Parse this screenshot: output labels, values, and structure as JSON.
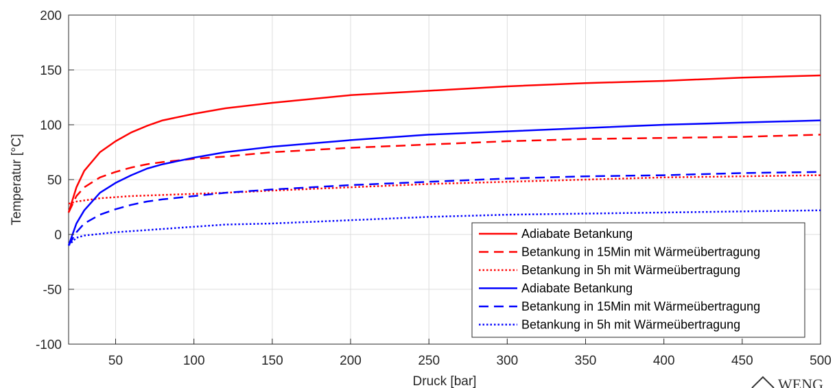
{
  "chart_data": {
    "type": "line",
    "xlabel": "Druck [bar]",
    "ylabel": "Temperatur [°C]",
    "xlim": [
      20,
      500
    ],
    "ylim": [
      -100,
      200
    ],
    "xticks": [
      50,
      100,
      150,
      200,
      250,
      300,
      350,
      400,
      450,
      500
    ],
    "yticks": [
      -100,
      -50,
      0,
      50,
      100,
      150,
      200
    ],
    "grid": true,
    "legend_position": "lower-right",
    "x": [
      20,
      25,
      30,
      40,
      50,
      60,
      70,
      80,
      100,
      120,
      150,
      200,
      250,
      300,
      350,
      400,
      450,
      500
    ],
    "series": [
      {
        "name": "Adiabate Betankung",
        "color": "#ff0000",
        "style": "solid",
        "values": [
          20,
          43,
          58,
          75,
          85,
          93,
          99,
          104,
          110,
          115,
          120,
          127,
          131,
          135,
          138,
          140,
          143,
          145
        ]
      },
      {
        "name": "Betankung in 15Min mit Wärmeübertragung",
        "color": "#ff0000",
        "style": "dashed",
        "values": [
          20,
          35,
          43,
          52,
          57,
          61,
          64,
          66,
          69,
          71,
          75,
          79,
          82,
          85,
          87,
          88,
          89,
          91
        ]
      },
      {
        "name": "Betankung in 5h mit Wärmeübertragung",
        "color": "#ff0000",
        "style": "dotted",
        "values": [
          28,
          30,
          31,
          33,
          34,
          35,
          35.5,
          36,
          37,
          38,
          40,
          43,
          46,
          48,
          50,
          52,
          53,
          54
        ]
      },
      {
        "name": "Adiabate Betankung",
        "color": "#0000ff",
        "style": "solid",
        "values": [
          -10,
          10,
          22,
          38,
          47,
          54,
          60,
          64,
          70,
          75,
          80,
          86,
          91,
          94,
          97,
          100,
          102,
          104
        ]
      },
      {
        "name": "Betankung in 15Min mit Wärmeübertragung",
        "color": "#0000ff",
        "style": "dashed",
        "values": [
          -10,
          2,
          10,
          18,
          23,
          27,
          30,
          32,
          35,
          38,
          41,
          45,
          48,
          51,
          53,
          54,
          56,
          57
        ]
      },
      {
        "name": "Betankung in 5h mit Wärmeübertragung",
        "color": "#0000ff",
        "style": "dotted",
        "values": [
          -10,
          -3,
          -1,
          0.5,
          2,
          3,
          4,
          5,
          7,
          9,
          10,
          13,
          16,
          18,
          19,
          20,
          21,
          22
        ]
      }
    ]
  },
  "watermark": "WENG"
}
